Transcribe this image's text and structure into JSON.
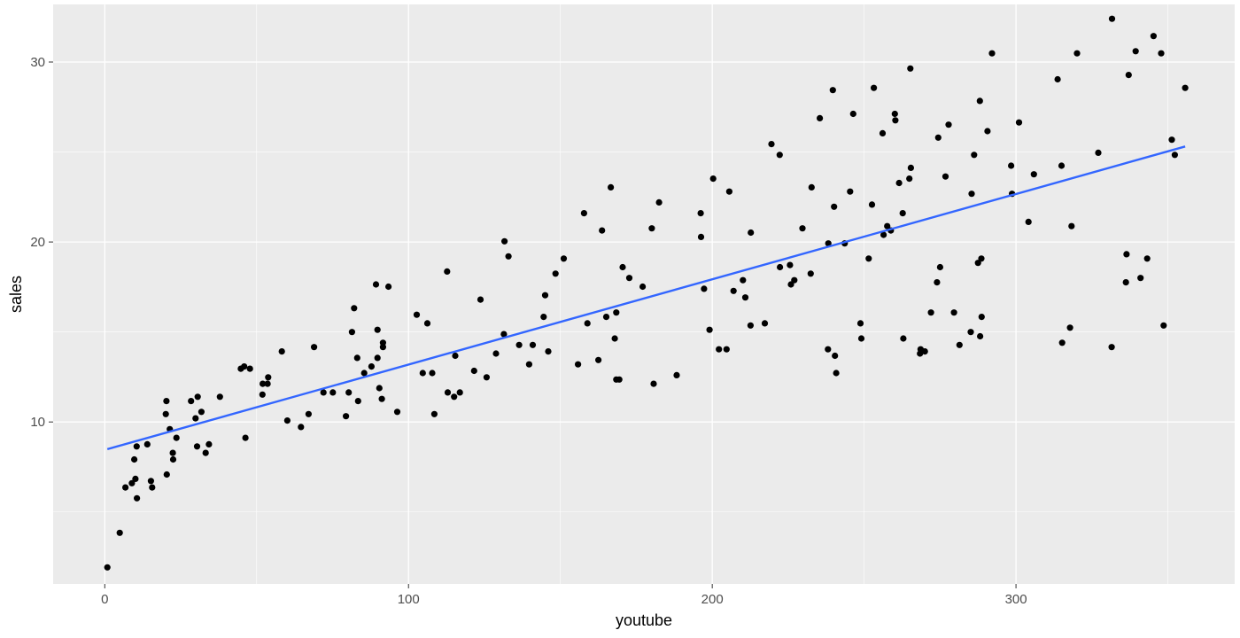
{
  "chart_data": {
    "type": "scatter",
    "title": "",
    "xlabel": "youtube",
    "ylabel": "sales",
    "xlim": [
      -17,
      372
    ],
    "ylim": [
      1,
      33.2
    ],
    "xticks": [
      0,
      100,
      200,
      300
    ],
    "yticks": [
      10,
      20,
      30
    ],
    "xtick_labels": [
      "0",
      "100",
      "200",
      "300"
    ],
    "ytick_labels": [
      "10",
      "20",
      "30"
    ],
    "grid": true,
    "legend": "none",
    "colors": {
      "panel": "#ebebeb",
      "grid": "#ffffff",
      "points": "#000000",
      "fit_line": "#3366ff",
      "tick_mark": "#333333",
      "tick_label": "#4d4d4d"
    },
    "series": [
      {
        "kind": "points",
        "points": [
          [
            0.84,
            1.92
          ],
          [
            4.92,
            3.84
          ],
          [
            6.8,
            6.36
          ],
          [
            8.92,
            6.6
          ],
          [
            10.1,
            6.84
          ],
          [
            9.7,
            7.92
          ],
          [
            10.5,
            8.64
          ],
          [
            10.6,
            5.76
          ],
          [
            14,
            8.76
          ],
          [
            15.2,
            6.72
          ],
          [
            15.6,
            6.36
          ],
          [
            20.3,
            11.16
          ],
          [
            20.1,
            10.44
          ],
          [
            20.4,
            7.08
          ],
          [
            21.4,
            9.6
          ],
          [
            22.4,
            8.28
          ],
          [
            22.5,
            7.92
          ],
          [
            23.6,
            9.12
          ],
          [
            28.4,
            11.16
          ],
          [
            29.9,
            10.2
          ],
          [
            30.4,
            8.64
          ],
          [
            30.6,
            11.4
          ],
          [
            31.8,
            10.56
          ],
          [
            33.2,
            8.28
          ],
          [
            34.3,
            8.76
          ],
          [
            37.9,
            11.4
          ],
          [
            44.8,
            12.96
          ],
          [
            45.9,
            13.08
          ],
          [
            46.3,
            9.12
          ],
          [
            47.8,
            12.96
          ],
          [
            51.9,
            11.52
          ],
          [
            52,
            12.12
          ],
          [
            53.6,
            12.12
          ],
          [
            53.8,
            12.48
          ],
          [
            58.3,
            13.92
          ],
          [
            60.1,
            10.08
          ],
          [
            64.6,
            9.72
          ],
          [
            67.1,
            10.44
          ],
          [
            68.9,
            14.16
          ],
          [
            72,
            11.64
          ],
          [
            75.1,
            11.64
          ],
          [
            79.4,
            10.32
          ],
          [
            80.3,
            11.64
          ],
          [
            81.4,
            15
          ],
          [
            82.1,
            16.32
          ],
          [
            83.1,
            13.56
          ],
          [
            83.4,
            11.16
          ],
          [
            85.4,
            12.72
          ],
          [
            87.8,
            13.08
          ],
          [
            89.3,
            17.64
          ],
          [
            89.8,
            15.12
          ],
          [
            89.8,
            13.56
          ],
          [
            90.4,
            11.88
          ],
          [
            91.2,
            11.28
          ],
          [
            91.6,
            14.16
          ],
          [
            91.6,
            14.4
          ],
          [
            93.4,
            17.52
          ],
          [
            96.3,
            10.56
          ],
          [
            102.7,
            15.96
          ],
          [
            104.7,
            12.72
          ],
          [
            106.2,
            15.48
          ],
          [
            107.8,
            12.72
          ],
          [
            108.5,
            10.44
          ],
          [
            112.7,
            18.36
          ],
          [
            112.9,
            11.64
          ],
          [
            115,
            11.4
          ],
          [
            115.4,
            13.68
          ],
          [
            116.9,
            11.64
          ],
          [
            121.6,
            12.84
          ],
          [
            123.7,
            16.8
          ],
          [
            125.7,
            12.48
          ],
          [
            128.8,
            13.8
          ],
          [
            131.4,
            14.88
          ],
          [
            131.6,
            20.04
          ],
          [
            132.9,
            19.2
          ],
          [
            136.4,
            14.28
          ],
          [
            139.7,
            13.2
          ],
          [
            140.9,
            14.28
          ],
          [
            144.5,
            15.84
          ],
          [
            145,
            17.04
          ],
          [
            146,
            13.92
          ],
          [
            148.4,
            18.24
          ],
          [
            151.1,
            19.08
          ],
          [
            155.8,
            13.2
          ],
          [
            157.8,
            21.6
          ],
          [
            158.9,
            15.48
          ],
          [
            162.5,
            13.44
          ],
          [
            163.7,
            20.64
          ],
          [
            165.1,
            15.84
          ],
          [
            166.6,
            23.04
          ],
          [
            167.9,
            14.64
          ],
          [
            168.4,
            16.08
          ],
          [
            168.4,
            12.36
          ],
          [
            169.4,
            12.36
          ],
          [
            170.5,
            18.6
          ],
          [
            172.7,
            18
          ],
          [
            177.1,
            17.52
          ],
          [
            180.1,
            20.76
          ],
          [
            180.7,
            12.12
          ],
          [
            182.5,
            22.2
          ],
          [
            188.3,
            12.6
          ],
          [
            196.2,
            21.6
          ],
          [
            196.3,
            20.28
          ],
          [
            197.3,
            17.4
          ],
          [
            199.1,
            15.12
          ],
          [
            200.3,
            23.52
          ],
          [
            202.2,
            14.04
          ],
          [
            204.7,
            14.04
          ],
          [
            205.6,
            22.8
          ],
          [
            207,
            17.28
          ],
          [
            210.1,
            17.88
          ],
          [
            210.9,
            16.92
          ],
          [
            212.6,
            15.36
          ],
          [
            212.7,
            20.52
          ],
          [
            217.3,
            15.48
          ],
          [
            219.5,
            25.44
          ],
          [
            222.2,
            24.84
          ],
          [
            222.3,
            18.6
          ],
          [
            225.6,
            18.72
          ],
          [
            225.9,
            17.64
          ],
          [
            227,
            17.88
          ],
          [
            229.7,
            20.76
          ],
          [
            232.4,
            18.24
          ],
          [
            232.7,
            23.04
          ],
          [
            235.4,
            26.88
          ],
          [
            238.1,
            14.04
          ],
          [
            238.2,
            19.92
          ],
          [
            239.7,
            28.44
          ],
          [
            240.1,
            21.96
          ],
          [
            240.4,
            13.68
          ],
          [
            240.8,
            12.72
          ],
          [
            243.6,
            19.92
          ],
          [
            245.4,
            22.8
          ],
          [
            246.4,
            27.12
          ],
          [
            248.8,
            15.48
          ],
          [
            249.1,
            14.64
          ],
          [
            251.5,
            19.08
          ],
          [
            252.6,
            22.08
          ],
          [
            253.2,
            28.56
          ],
          [
            256.1,
            26.04
          ],
          [
            256.4,
            20.4
          ],
          [
            257.6,
            20.88
          ],
          [
            258.8,
            20.64
          ],
          [
            260.3,
            26.76
          ],
          [
            260.1,
            27.12
          ],
          [
            261.5,
            23.28
          ],
          [
            262.7,
            21.6
          ],
          [
            262.9,
            14.64
          ],
          [
            264.9,
            23.52
          ],
          [
            265.4,
            24.12
          ],
          [
            265.2,
            29.64
          ],
          [
            268.4,
            13.8
          ],
          [
            268.6,
            14.04
          ],
          [
            270,
            13.92
          ],
          [
            272,
            16.08
          ],
          [
            274,
            17.76
          ],
          [
            274.4,
            25.8
          ],
          [
            275,
            18.6
          ],
          [
            276.8,
            23.64
          ],
          [
            277.8,
            26.52
          ],
          [
            279.6,
            16.08
          ],
          [
            281.4,
            14.28
          ],
          [
            285.1,
            15
          ],
          [
            285.4,
            22.68
          ],
          [
            286.2,
            24.84
          ],
          [
            287.5,
            18.84
          ],
          [
            288.1,
            27.84
          ],
          [
            288.2,
            14.76
          ],
          [
            288.7,
            15.84
          ],
          [
            288.6,
            19.08
          ],
          [
            290.6,
            26.16
          ],
          [
            292.1,
            30.48
          ],
          [
            298.4,
            24.24
          ],
          [
            298.7,
            22.68
          ],
          [
            301,
            26.64
          ],
          [
            304.1,
            21.12
          ],
          [
            305.9,
            23.76
          ],
          [
            313.7,
            29.04
          ],
          [
            315,
            24.24
          ],
          [
            315.2,
            14.4
          ],
          [
            317.8,
            15.24
          ],
          [
            318.3,
            20.88
          ],
          [
            320.1,
            30.48
          ],
          [
            327.1,
            24.96
          ],
          [
            331.5,
            14.16
          ],
          [
            331.6,
            32.4
          ],
          [
            336.2,
            17.76
          ],
          [
            336.4,
            19.32
          ],
          [
            337.1,
            29.28
          ],
          [
            339.4,
            30.6
          ],
          [
            341,
            18
          ],
          [
            343.2,
            19.08
          ],
          [
            345.3,
            31.44
          ],
          [
            347.8,
            30.48
          ],
          [
            348.6,
            15.36
          ],
          [
            351.3,
            25.68
          ],
          [
            352.3,
            24.84
          ],
          [
            355.7,
            28.56
          ]
        ]
      },
      {
        "kind": "line",
        "points": [
          [
            0.84,
            8.49
          ],
          [
            355.7,
            25.31
          ]
        ]
      }
    ]
  }
}
